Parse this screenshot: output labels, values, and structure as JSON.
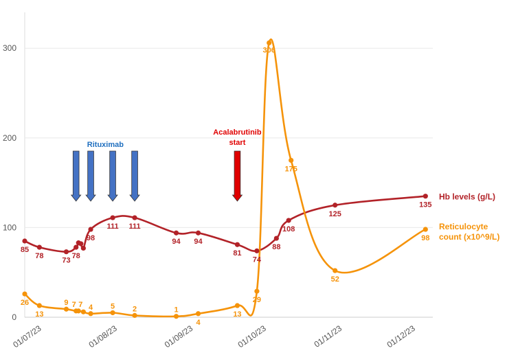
{
  "chart_data": {
    "type": "line",
    "title": "",
    "xlabel": "",
    "ylabel": "",
    "ylim": [
      0,
      340
    ],
    "y_ticks": [
      0,
      100,
      200,
      300
    ],
    "x_tick_labels": [
      "01/07/23",
      "01/08/23",
      "01/09/23",
      "01/10/23",
      "01/11/23",
      "01/12/23"
    ],
    "x_tick_dates": [
      "2023-07-01",
      "2023-08-01",
      "2023-09-01",
      "2023-10-01",
      "2023-11-01",
      "2023-12-01"
    ],
    "xlim": [
      "2023-06-24",
      "2023-12-08"
    ],
    "grid": true,
    "series": [
      {
        "name": "Hb levels (g/L)",
        "color": "#b22228",
        "points": [
          {
            "x": "2023-06-24",
            "y": 85,
            "label": "85"
          },
          {
            "x": "2023-06-30",
            "y": 78,
            "label": "78"
          },
          {
            "x": "2023-07-11",
            "y": 73,
            "label": "73"
          },
          {
            "x": "2023-07-15",
            "y": 78,
            "label": "78"
          },
          {
            "x": "2023-07-16",
            "y": 83,
            "label": ""
          },
          {
            "x": "2023-07-17",
            "y": 82,
            "label": ""
          },
          {
            "x": "2023-07-18",
            "y": 77,
            "label": ""
          },
          {
            "x": "2023-07-21",
            "y": 98,
            "label": "98"
          },
          {
            "x": "2023-07-30",
            "y": 111,
            "label": "111"
          },
          {
            "x": "2023-08-08",
            "y": 111,
            "label": "111"
          },
          {
            "x": "2023-08-25",
            "y": 94,
            "label": "94"
          },
          {
            "x": "2023-09-03",
            "y": 94,
            "label": "94"
          },
          {
            "x": "2023-09-19",
            "y": 81,
            "label": "81"
          },
          {
            "x": "2023-09-27",
            "y": 74,
            "label": "74"
          },
          {
            "x": "2023-10-05",
            "y": 88,
            "label": "88"
          },
          {
            "x": "2023-10-10",
            "y": 108,
            "label": "108"
          },
          {
            "x": "2023-10-29",
            "y": 125,
            "label": "125"
          },
          {
            "x": "2023-12-05",
            "y": 135,
            "label": "135"
          }
        ]
      },
      {
        "name": "Reticulocyte count (x10^9/L)",
        "color": "#f5930a",
        "points": [
          {
            "x": "2023-06-24",
            "y": 26,
            "label": "26"
          },
          {
            "x": "2023-06-30",
            "y": 13,
            "label": "13"
          },
          {
            "x": "2023-07-11",
            "y": 9,
            "label": "9"
          },
          {
            "x": "2023-07-15",
            "y": 7,
            "label": "7"
          },
          {
            "x": "2023-07-16",
            "y": 7,
            "label": "7"
          },
          {
            "x": "2023-07-18",
            "y": 6,
            "label": ""
          },
          {
            "x": "2023-07-21",
            "y": 4,
            "label": "4"
          },
          {
            "x": "2023-07-30",
            "y": 5,
            "label": "5"
          },
          {
            "x": "2023-08-08",
            "y": 2,
            "label": "2"
          },
          {
            "x": "2023-08-25",
            "y": 1,
            "label": "1"
          },
          {
            "x": "2023-09-03",
            "y": 4,
            "label": "4"
          },
          {
            "x": "2023-09-19",
            "y": 13,
            "label": "13"
          },
          {
            "x": "2023-09-27",
            "y": 29,
            "label": "29"
          },
          {
            "x": "2023-10-02",
            "y": 306,
            "label": "306"
          },
          {
            "x": "2023-10-11",
            "y": 175,
            "label": "175"
          },
          {
            "x": "2023-10-29",
            "y": 52,
            "label": "52"
          },
          {
            "x": "2023-12-05",
            "y": 98,
            "label": "98"
          }
        ]
      }
    ],
    "annotations": [
      {
        "text": "Rituximab",
        "color": "#1f6fbf",
        "arrow_color": "#4472c4",
        "arrow_dates": [
          "2023-07-15",
          "2023-07-21",
          "2023-07-30",
          "2023-08-08"
        ]
      },
      {
        "text_lines": [
          "Acalabrutinib",
          "start"
        ],
        "color": "#e00000",
        "arrow_color": "#e00000",
        "arrow_dates": [
          "2023-09-19"
        ]
      }
    ]
  }
}
